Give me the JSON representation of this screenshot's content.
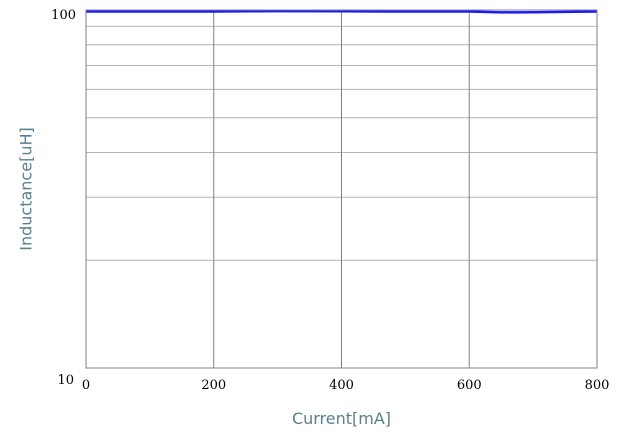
{
  "chart_data": {
    "type": "line",
    "title": "",
    "xlabel": "Current[mA]",
    "ylabel": "Inductance[uH]",
    "xlim": [
      0,
      800
    ],
    "ylim": [
      10,
      100
    ],
    "y_scale": "log",
    "grid": true,
    "x_ticks": [
      0,
      200,
      400,
      600,
      800
    ],
    "x_tick_labels": [
      "0",
      "200",
      "400",
      "600",
      "800"
    ],
    "y_ticks": [
      10,
      100
    ],
    "y_tick_labels": [
      "10",
      "100"
    ],
    "y_minor_grid": [
      20,
      30,
      40,
      50,
      60,
      70,
      80,
      90
    ],
    "series": [
      {
        "color": "#1a1aff",
        "x": [
          0,
          100,
          200,
          300,
          400,
          500,
          600,
          650,
          700,
          800
        ],
        "y": [
          99,
          99,
          99,
          99.3,
          99.2,
          99,
          99,
          98.5,
          98.6,
          99
        ]
      }
    ],
    "colors": {
      "grid_major": "#808080",
      "grid_minor": "#b4b4b4",
      "frame": "#808080",
      "axis_title": "#5a7f8f"
    }
  }
}
